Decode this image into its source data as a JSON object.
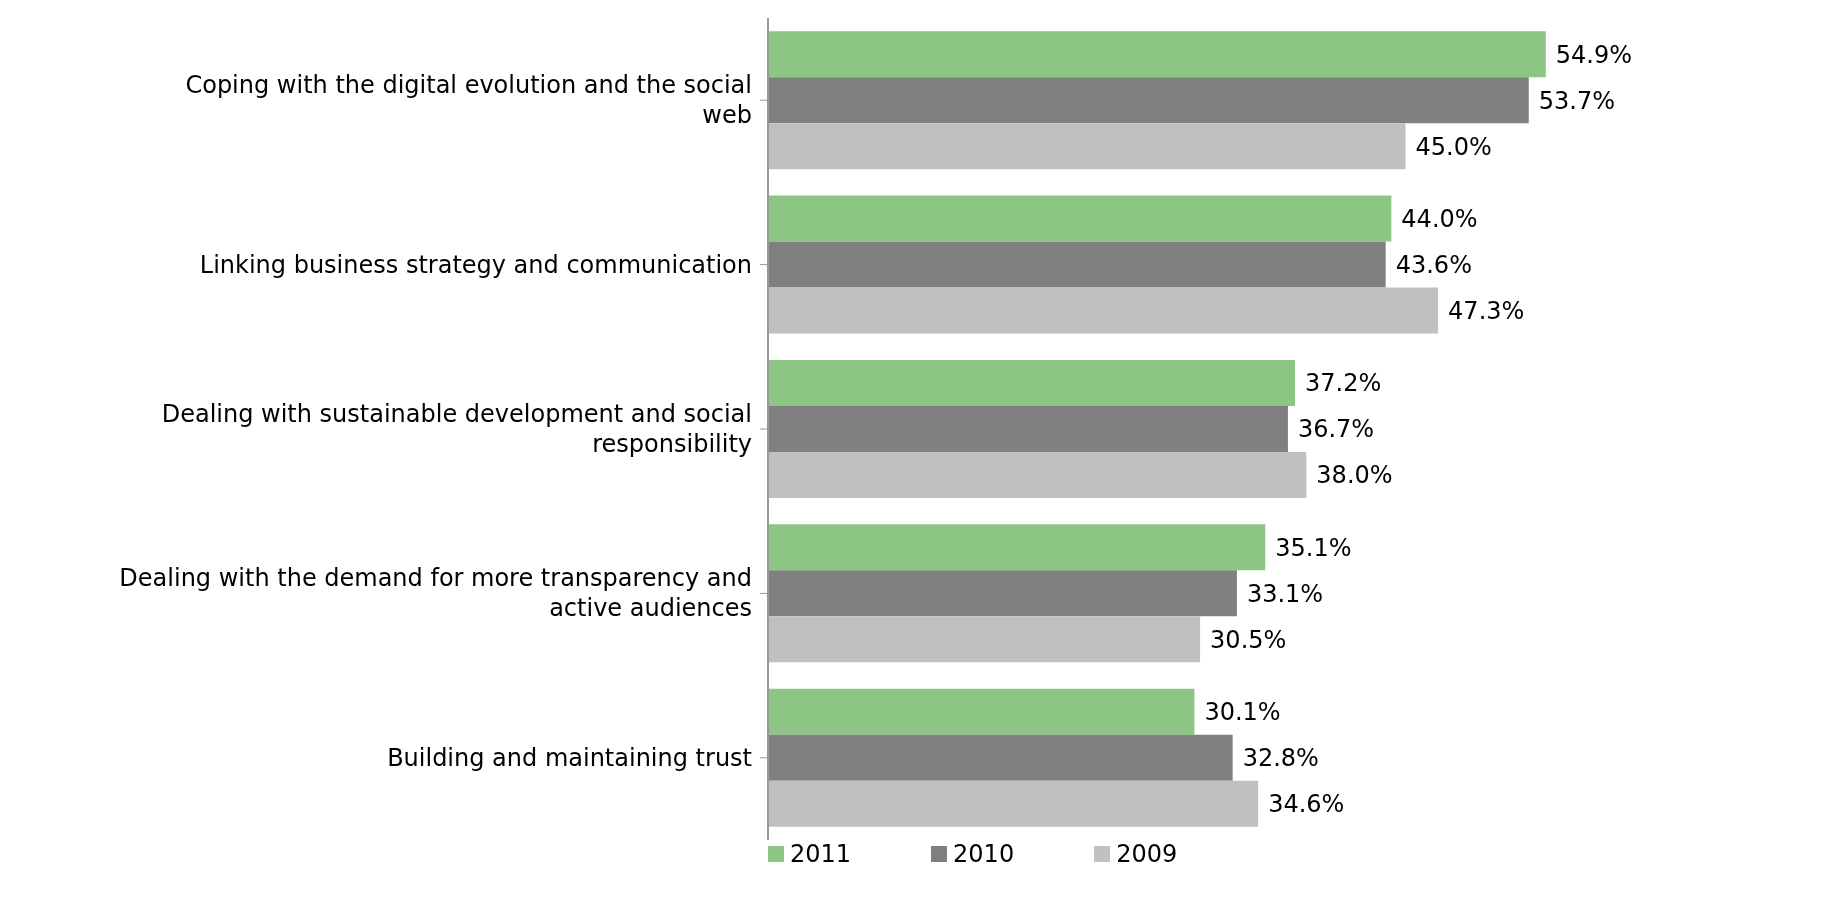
{
  "chart_data": {
    "type": "bar",
    "orientation": "horizontal",
    "categories": [
      "Coping with the digital evolution and the social web",
      "Linking business strategy and communication",
      "Dealing with sustainable development and social responsibility",
      "Dealing with the demand for more transparency and active audiences",
      "Building and maintaining trust"
    ],
    "series": [
      {
        "name": "2011",
        "color": "#8dc584",
        "values": [
          54.9,
          44.0,
          37.2,
          35.1,
          30.1
        ],
        "value_labels": [
          "54.9%",
          "44.0%",
          "37.2%",
          "35.1%",
          "30.1%"
        ]
      },
      {
        "name": "2010",
        "color": "#808080",
        "values": [
          53.7,
          43.6,
          36.7,
          33.1,
          32.8
        ],
        "value_labels": [
          "53.7%",
          "43.6%",
          "36.7%",
          "33.1%",
          "32.8%"
        ]
      },
      {
        "name": "2009",
        "color": "#c0c0c0",
        "values": [
          45.0,
          47.3,
          38.0,
          30.5,
          34.6
        ],
        "value_labels": [
          "45.0%",
          "47.3%",
          "38.0%",
          "30.5%",
          "34.6%"
        ]
      }
    ],
    "grid": false,
    "legend": "bottom"
  }
}
